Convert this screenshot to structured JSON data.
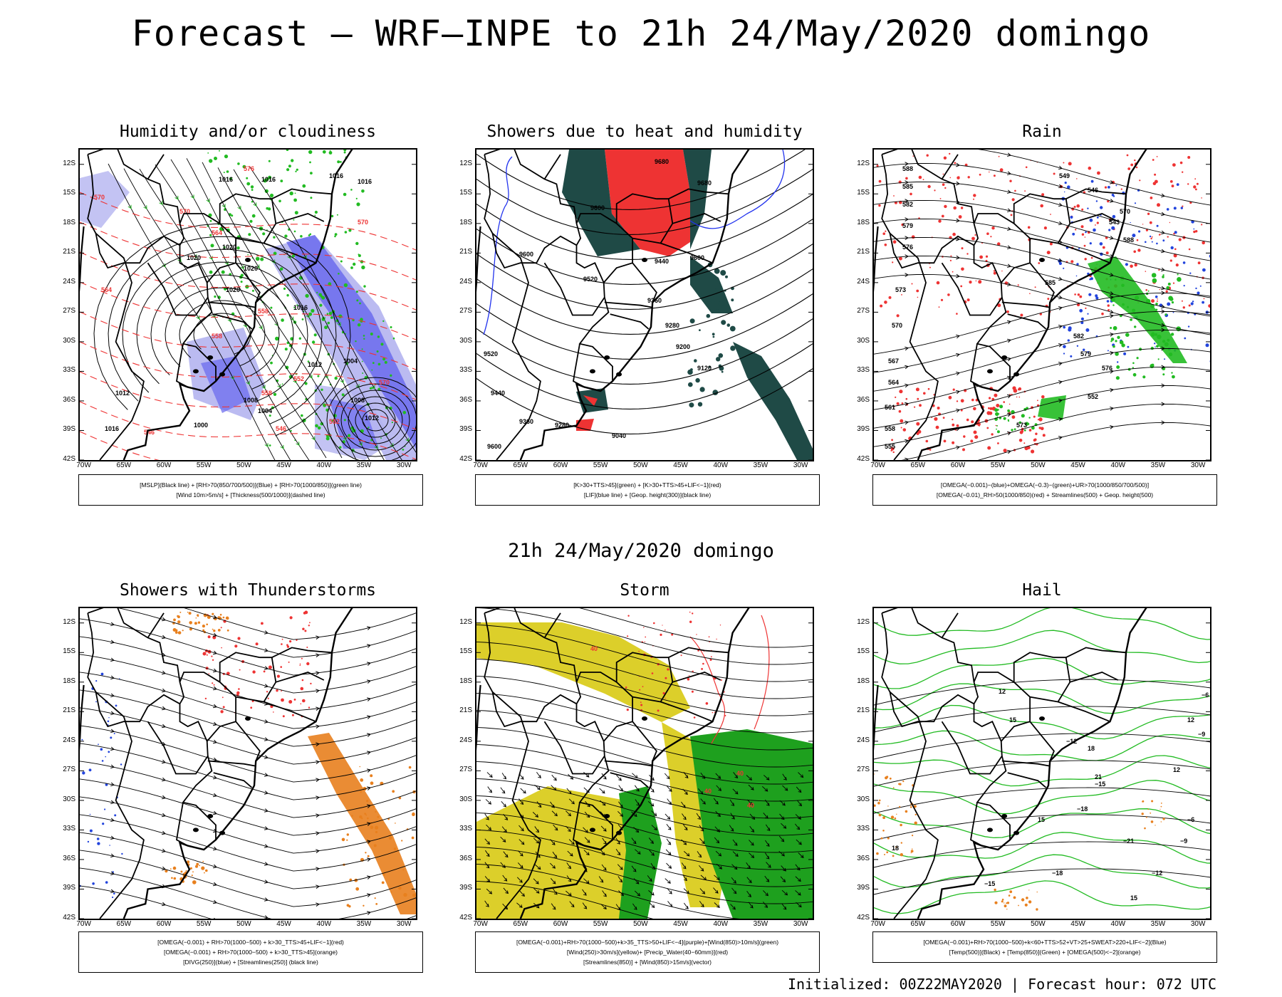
{
  "title": "Forecast — WRF—INPE to 21h 24/May/2020 domingo",
  "mid_title": "21h 24/May/2020 domingo",
  "footer": "Initialized: 00Z22MAY2020 | Forecast hour: 072 UTC",
  "axes": {
    "lat_labels": [
      "12S",
      "15S",
      "18S",
      "21S",
      "24S",
      "27S",
      "30S",
      "33S",
      "36S",
      "39S",
      "42S"
    ],
    "lon_labels": [
      "70W",
      "65W",
      "60W",
      "55W",
      "50W",
      "45W",
      "40W",
      "35W",
      "30W"
    ]
  },
  "panels": [
    {
      "title": "Humidity and/or cloudiness",
      "legend": [
        "[MSLP](Black line) + [RH>70(850/700/500)](Blue) + [RH>70(1000/850)](green line)",
        "[Wind 10m>5m/s] + [Thickness(500/1000)](dashed line)"
      ],
      "contour_labels": [
        "1016",
        "1016",
        "1016",
        "1016",
        "1020",
        "1020",
        "1020",
        "1020",
        "1016",
        "1012",
        "1008",
        "1004",
        "1000",
        "1012",
        "1016",
        "1004",
        "1008",
        "1012"
      ],
      "thickness_labels": [
        "576",
        "570",
        "570",
        "570",
        "564",
        "564",
        "558",
        "558",
        "558",
        "552",
        "546",
        "546",
        "552",
        "570"
      ]
    },
    {
      "title": "Showers due to heat and humidity",
      "legend": [
        "[K>30+TTS>45](green) + [K>30+TTS>45+LIF<−1](red)",
        "[LIF](blue line) + [Geop. height(300)](black line)"
      ],
      "contour_labels": [
        "9680",
        "9680",
        "9600",
        "9600",
        "9520",
        "9440",
        "9360",
        "9280",
        "9200",
        "9120",
        "9040",
        "9600",
        "9520",
        "9440",
        "9360",
        "9280",
        "9600"
      ]
    },
    {
      "title": "Rain",
      "legend": [
        "[OMEGA(−0.001)−(blue)+OMEGA(−0.3)−(green)+UR>70(1000/850/700/500)]",
        "[OMEGA(−0.01)_RH>50(1000/850)(red) + Streamlines(500) + Geop. height(500)"
      ],
      "contour_labels": [
        "588",
        "585",
        "582",
        "579",
        "576",
        "573",
        "570",
        "567",
        "564",
        "561",
        "558",
        "555",
        "552",
        "549",
        "546",
        "543",
        "588",
        "585",
        "582",
        "579",
        "576",
        "573",
        "570"
      ]
    },
    {
      "title": "Showers with Thunderstorms",
      "legend": [
        "[OMEGA(−0.001) + RH>70(1000−500) + k>30_TTS>45+LIF<−1](red)",
        "[OMEGA(−0.001) + RH>70(1000−500) + k>30_TTS>45](orange)",
        "[DIVG(250)](blue) + [Streamlines(250)] (black line)"
      ]
    },
    {
      "title": "Storm",
      "legend": [
        "[OMEGA(−0.001)+RH>70(1000−500)+k>35_TTS>50+LIF<−4](purple)+[Wind(850)>10m/s](green)",
        "[Wind(250)>30m/s](yellow)+ [Precip_Water(40−60mm)](red)",
        "[Streamlines(850)] + [Wind(850)>15m/s](vector)"
      ],
      "contour_labels": [
        "40",
        "40",
        "40",
        "40"
      ]
    },
    {
      "title": "Hail",
      "legend": [
        "[OMEGA(−0.001)+RH>70(1000−500)+k<60+TTS>52+VT>25+SWEAT>220+LIF<−2](Blue)",
        "[Temp(500)](Black) + [Temp(850)](Green) + [OMEGA(500)<−2](orange)"
      ],
      "contour_labels": [
        "−6",
        "−9",
        "−12",
        "−15",
        "−18",
        "−21",
        "−18",
        "−15",
        "−12",
        "−9",
        "−6",
        "12",
        "15",
        "18",
        "21",
        "12",
        "15",
        "18",
        "12",
        "15"
      ]
    }
  ],
  "colors": {
    "map_line": "#000000",
    "rh_blue": "#6666ee",
    "rh_light": "#b4b4f0",
    "green": "#22bb22",
    "red": "#ee3333",
    "dark_teal": "#1f4a46",
    "orange": "#e8801e",
    "yellow": "#dccf2a",
    "storm_green": "#1ea01e"
  }
}
